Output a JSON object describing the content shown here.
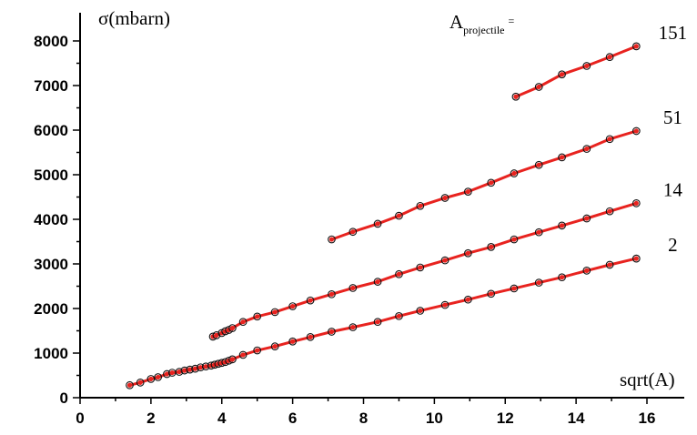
{
  "chart_data": {
    "type": "scatter",
    "ylabel": "σ(mbarn)",
    "xlabel": "sqrt(A)",
    "legend_title": "A",
    "legend_title_sub": "projectile",
    "legend_title_suffix": "=",
    "xlim": [
      0,
      16.6
    ],
    "ylim": [
      0,
      8300
    ],
    "x_ticks": [
      0,
      2,
      4,
      6,
      8,
      10,
      12,
      14,
      16
    ],
    "x_tick_labels": [
      "0",
      "2",
      "4",
      "6",
      "8",
      "10",
      "12",
      "14",
      "16"
    ],
    "y_ticks": [
      0,
      1000,
      2000,
      3000,
      4000,
      5000,
      6000,
      7000,
      8000
    ],
    "y_tick_labels": [
      "0",
      "1000",
      "2000",
      "3000",
      "4000",
      "5000",
      "6000",
      "7000",
      "8000"
    ],
    "grid": false,
    "series": [
      {
        "name": "2",
        "x": [
          1.4,
          1.7,
          2.0,
          2.2,
          2.45,
          2.6,
          2.8,
          2.95,
          3.1,
          3.25,
          3.4,
          3.55,
          3.7,
          3.8,
          3.9,
          4.0,
          4.1,
          4.2,
          4.3,
          4.6,
          5.0,
          5.5,
          6.0,
          6.5,
          7.1,
          7.7,
          8.4,
          9.0,
          9.6,
          10.3,
          10.95,
          11.6,
          12.25,
          12.95,
          13.6,
          14.3,
          14.95,
          15.7
        ],
        "y": [
          280,
          340,
          420,
          460,
          530,
          560,
          580,
          610,
          630,
          650,
          680,
          700,
          720,
          740,
          760,
          780,
          800,
          830,
          860,
          960,
          1060,
          1150,
          1260,
          1360,
          1480,
          1580,
          1700,
          1830,
          1950,
          2080,
          2200,
          2330,
          2450,
          2580,
          2700,
          2850,
          2980,
          3120
        ]
      },
      {
        "name": "14",
        "x": [
          3.75,
          3.85,
          4.0,
          4.1,
          4.2,
          4.3,
          4.6,
          5.0,
          5.5,
          6.0,
          6.5,
          7.1,
          7.7,
          8.4,
          9.0,
          9.6,
          10.3,
          10.95,
          11.6,
          12.25,
          12.95,
          13.6,
          14.3,
          14.95,
          15.7
        ],
        "y": [
          1370,
          1400,
          1450,
          1490,
          1520,
          1560,
          1700,
          1820,
          1920,
          2050,
          2180,
          2320,
          2460,
          2600,
          2770,
          2920,
          3080,
          3240,
          3380,
          3550,
          3710,
          3860,
          4020,
          4180,
          4360
        ]
      },
      {
        "name": "51",
        "x": [
          7.1,
          7.7,
          8.4,
          9.0,
          9.6,
          10.3,
          10.95,
          11.6,
          12.25,
          12.95,
          13.6,
          14.3,
          14.95,
          15.7
        ],
        "y": [
          3550,
          3720,
          3900,
          4080,
          4300,
          4480,
          4620,
          4820,
          5030,
          5220,
          5390,
          5580,
          5800,
          5980
        ]
      },
      {
        "name": "151",
        "x": [
          12.3,
          12.95,
          13.6,
          14.3,
          14.95,
          15.7
        ],
        "y": [
          6750,
          6970,
          7250,
          7440,
          7640,
          7880
        ]
      }
    ]
  }
}
